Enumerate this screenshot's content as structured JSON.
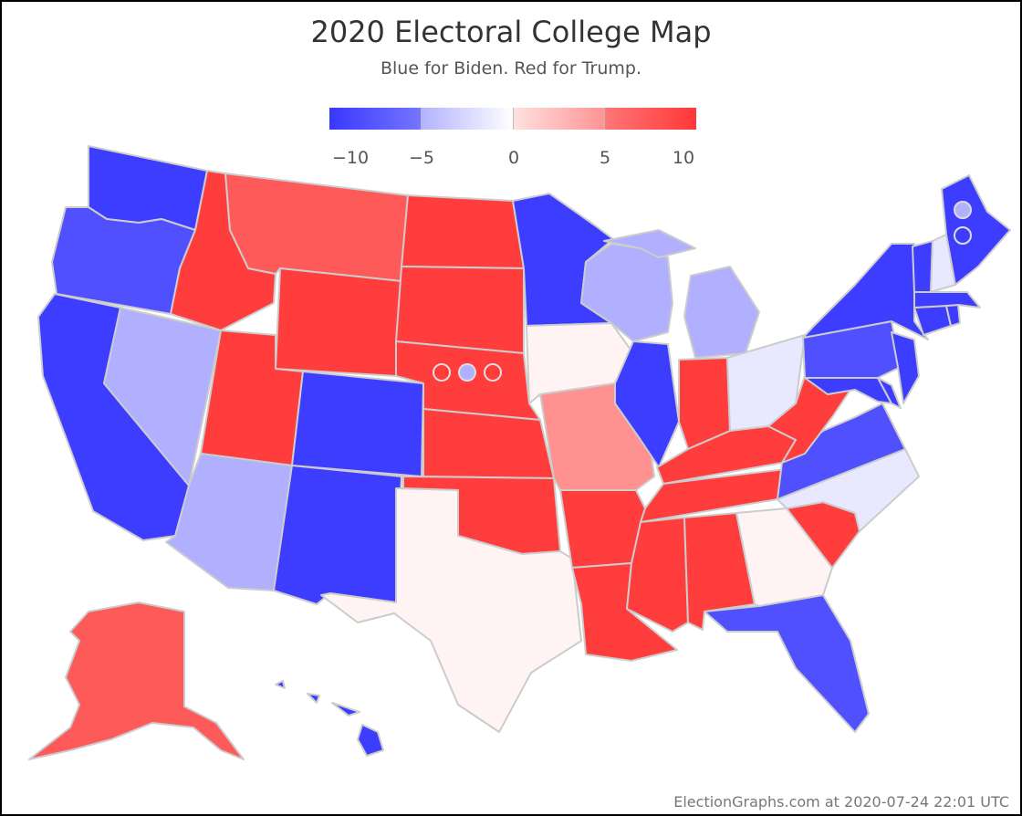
{
  "title": "2020 Electoral College Map",
  "subtitle": "Blue for Biden. Red for Trump.",
  "legend": {
    "labels": [
      "−10",
      "−5",
      "0",
      "5",
      "10"
    ],
    "values": [
      -10,
      -5,
      0,
      5,
      10
    ]
  },
  "footer": "ElectionGraphs.com at 2020-07-24 22:01 UTC",
  "colors": {
    "strong_blue": "#3d3dff",
    "blue": "#5050ff",
    "light_blue": "#b0b0ff",
    "pale_blue": "#e8e8ff",
    "strong_red": "#ff3d3d",
    "red": "#ff5a5a",
    "light_red": "#ff9191",
    "pale_red": "#fff3f3",
    "border": "#cccccc"
  },
  "states": [
    {
      "name": "WA",
      "color": "strong_blue"
    },
    {
      "name": "OR",
      "color": "blue"
    },
    {
      "name": "CA",
      "color": "strong_blue"
    },
    {
      "name": "NV",
      "color": "light_blue"
    },
    {
      "name": "ID",
      "color": "strong_red"
    },
    {
      "name": "MT",
      "color": "red"
    },
    {
      "name": "WY",
      "color": "strong_red"
    },
    {
      "name": "UT",
      "color": "strong_red"
    },
    {
      "name": "AZ",
      "color": "light_blue"
    },
    {
      "name": "CO",
      "color": "strong_blue"
    },
    {
      "name": "NM",
      "color": "strong_blue"
    },
    {
      "name": "ND",
      "color": "strong_red"
    },
    {
      "name": "SD",
      "color": "strong_red"
    },
    {
      "name": "NE",
      "color": "strong_red"
    },
    {
      "name": "KS",
      "color": "strong_red"
    },
    {
      "name": "OK",
      "color": "strong_red"
    },
    {
      "name": "TX",
      "color": "pale_red"
    },
    {
      "name": "MN",
      "color": "strong_blue"
    },
    {
      "name": "IA",
      "color": "pale_red"
    },
    {
      "name": "MO",
      "color": "light_red"
    },
    {
      "name": "AR",
      "color": "strong_red"
    },
    {
      "name": "LA",
      "color": "strong_red"
    },
    {
      "name": "WI",
      "color": "light_blue"
    },
    {
      "name": "IL",
      "color": "strong_blue"
    },
    {
      "name": "MI",
      "color": "light_blue"
    },
    {
      "name": "IN",
      "color": "strong_red"
    },
    {
      "name": "OH",
      "color": "pale_blue"
    },
    {
      "name": "KY",
      "color": "strong_red"
    },
    {
      "name": "TN",
      "color": "strong_red"
    },
    {
      "name": "MS",
      "color": "strong_red"
    },
    {
      "name": "AL",
      "color": "strong_red"
    },
    {
      "name": "GA",
      "color": "pale_red"
    },
    {
      "name": "FL",
      "color": "blue"
    },
    {
      "name": "SC",
      "color": "strong_red"
    },
    {
      "name": "NC",
      "color": "pale_blue"
    },
    {
      "name": "VA",
      "color": "blue"
    },
    {
      "name": "WV",
      "color": "strong_red"
    },
    {
      "name": "PA",
      "color": "blue"
    },
    {
      "name": "NY",
      "color": "strong_blue"
    },
    {
      "name": "NJ",
      "color": "strong_blue"
    },
    {
      "name": "MD",
      "color": "strong_blue"
    },
    {
      "name": "DE",
      "color": "strong_blue"
    },
    {
      "name": "CT",
      "color": "strong_blue"
    },
    {
      "name": "RI",
      "color": "strong_blue"
    },
    {
      "name": "MA",
      "color": "strong_blue"
    },
    {
      "name": "VT",
      "color": "strong_blue"
    },
    {
      "name": "NH",
      "color": "pale_blue"
    },
    {
      "name": "ME",
      "color": "strong_blue"
    },
    {
      "name": "AK",
      "color": "red"
    },
    {
      "name": "HI",
      "color": "strong_blue"
    }
  ],
  "districts": [
    {
      "name": "NE-CD1",
      "color": "white"
    },
    {
      "name": "NE-CD2",
      "color": "light_blue"
    },
    {
      "name": "NE-CD3",
      "color": "white"
    },
    {
      "name": "ME-CD1",
      "color": "light_blue"
    },
    {
      "name": "ME-CD2",
      "color": "strong_blue"
    }
  ]
}
